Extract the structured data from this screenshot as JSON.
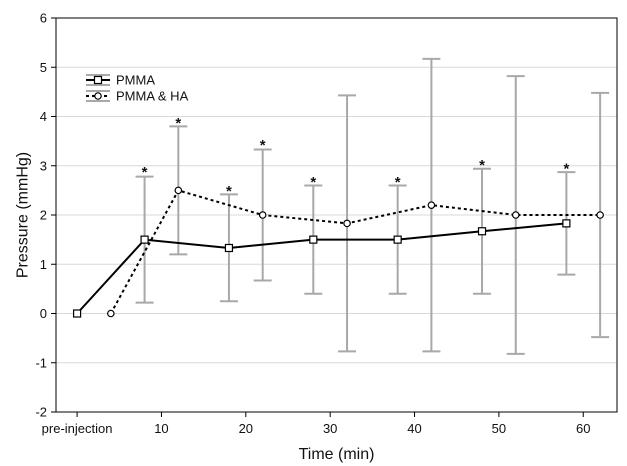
{
  "chart_data": {
    "type": "line",
    "title": "",
    "xlabel": "Time (min)",
    "ylabel": "Pressure (mmHg)",
    "ylim": [
      -2,
      6
    ],
    "xlim": [
      -2.5,
      64
    ],
    "x_ticks": [
      {
        "value": 0,
        "label": "pre-injection"
      },
      {
        "value": 10,
        "label": "10"
      },
      {
        "value": 20,
        "label": "20"
      },
      {
        "value": 30,
        "label": "30"
      },
      {
        "value": 40,
        "label": "40"
      },
      {
        "value": 50,
        "label": "50"
      },
      {
        "value": 60,
        "label": "60"
      }
    ],
    "y_ticks": [
      -2,
      -1,
      0,
      1,
      2,
      3,
      4,
      5,
      6
    ],
    "grid": "horizontal",
    "legend_position": "top-left",
    "series": [
      {
        "name": "PMMA",
        "line_style": "solid",
        "marker": "square",
        "color": "#000000",
        "points": [
          {
            "x": 0,
            "y": 0
          },
          {
            "x": 8,
            "y": 1.5,
            "err_low": 0.22,
            "err_high": 2.78
          },
          {
            "x": 18,
            "y": 1.33,
            "err_low": 0.25,
            "err_high": 2.42
          },
          {
            "x": 28,
            "y": 1.5,
            "err_low": 0.4,
            "err_high": 2.6
          },
          {
            "x": 38,
            "y": 1.5,
            "err_low": 0.4,
            "err_high": 2.6
          },
          {
            "x": 48,
            "y": 1.67,
            "err_low": 0.4,
            "err_high": 2.94
          },
          {
            "x": 58,
            "y": 1.83,
            "err_low": 0.79,
            "err_high": 2.87
          }
        ]
      },
      {
        "name": "PMMA & HA",
        "line_style": "dotted",
        "marker": "circle",
        "color": "#000000",
        "points": [
          {
            "x": 4,
            "y": 0
          },
          {
            "x": 12,
            "y": 2.5,
            "err_low": 1.2,
            "err_high": 3.8
          },
          {
            "x": 22,
            "y": 2.0,
            "err_low": 0.67,
            "err_high": 3.33
          },
          {
            "x": 32,
            "y": 1.83,
            "err_low": -0.77,
            "err_high": 4.43
          },
          {
            "x": 42,
            "y": 2.2,
            "err_low": -0.77,
            "err_high": 5.17
          },
          {
            "x": 52,
            "y": 2.0,
            "err_low": -0.82,
            "err_high": 4.82
          },
          {
            "x": 62,
            "y": 2.0,
            "err_low": -0.48,
            "err_high": 4.48
          }
        ]
      }
    ],
    "annotations": [
      {
        "text": "*",
        "x": 8,
        "y": 2.95
      },
      {
        "text": "*",
        "x": 12,
        "y": 3.95
      },
      {
        "text": "*",
        "x": 18,
        "y": 2.57
      },
      {
        "text": "*",
        "x": 22,
        "y": 3.5
      },
      {
        "text": "*",
        "x": 28,
        "y": 2.75
      },
      {
        "text": "*",
        "x": 38,
        "y": 2.75
      },
      {
        "text": "*",
        "x": 48,
        "y": 3.1
      },
      {
        "text": "*",
        "x": 58,
        "y": 3.03
      }
    ],
    "colors": {
      "axis": "#000000",
      "grid": "#d8d8d8",
      "error_bar": "#a8a8a8",
      "line": "#000000",
      "marker_fill": "#ffffff"
    }
  }
}
